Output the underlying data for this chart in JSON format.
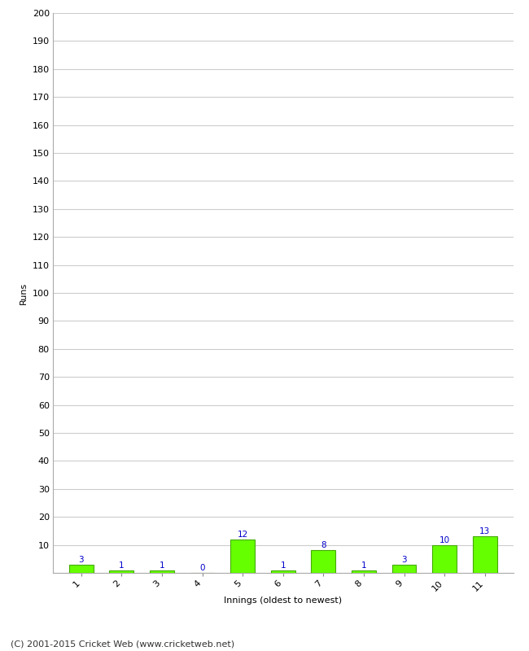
{
  "innings": [
    1,
    2,
    3,
    4,
    5,
    6,
    7,
    8,
    9,
    10,
    11
  ],
  "runs": [
    3,
    1,
    1,
    0,
    12,
    1,
    8,
    1,
    3,
    10,
    13
  ],
  "bar_color": "#66ff00",
  "bar_edge_color": "#44aa00",
  "label_color": "#0000cc",
  "xlabel": "Innings (oldest to newest)",
  "ylabel": "Runs",
  "ylim": [
    0,
    200
  ],
  "yticks": [
    0,
    10,
    20,
    30,
    40,
    50,
    60,
    70,
    80,
    90,
    100,
    110,
    120,
    130,
    140,
    150,
    160,
    170,
    180,
    190,
    200
  ],
  "footer": "(C) 2001-2015 Cricket Web (www.cricketweb.net)",
  "background_color": "#ffffff",
  "grid_color": "#cccccc",
  "label_fontsize": 7.5,
  "axis_tick_fontsize": 8,
  "axis_label_fontsize": 8,
  "footer_fontsize": 8
}
